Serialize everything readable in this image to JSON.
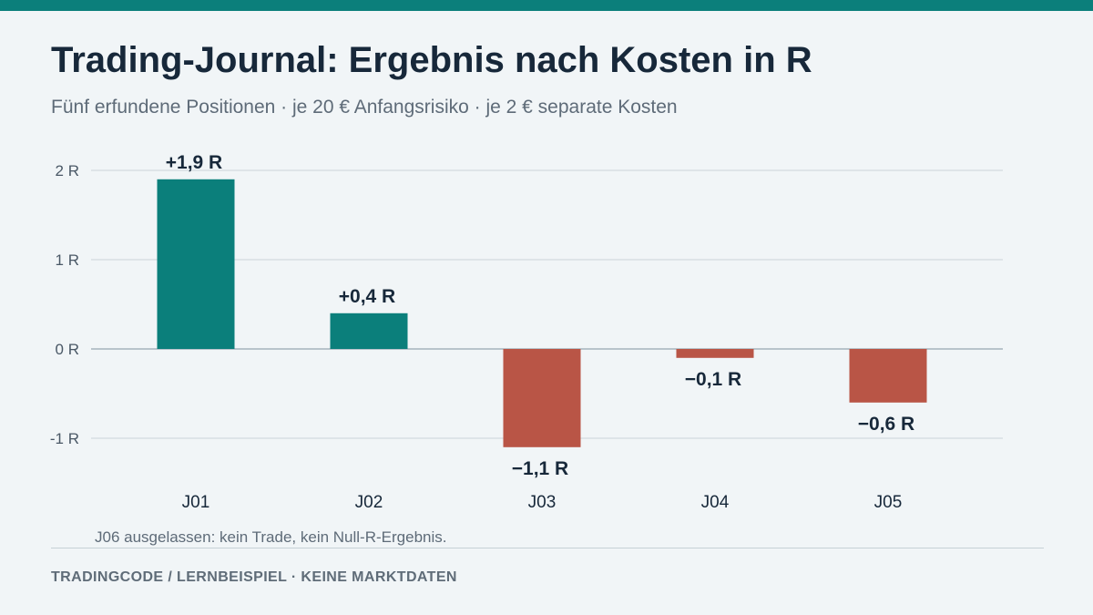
{
  "header": {
    "title": "Trading-Journal: Ergebnis nach Kosten in R",
    "subtitle": "Fünf erfundene Positionen · je 20 € Anfangsrisiko · je 2 € separate Kosten"
  },
  "footnote": "J06 ausgelassen: kein Trade, kein Null-R-Ergebnis.",
  "footer": {
    "text": "TRADINGCODE  /  LERNBEISPIEL · KEINE MARKTDATEN"
  },
  "colors": {
    "accent": "#0b7f7b",
    "positive": "#0b7f7b",
    "negative": "#b95546",
    "text": "#17283a",
    "grid": "#d3dbe0",
    "zero_line": "#b8c4cb",
    "background": "#f1f5f7"
  },
  "chart_data": {
    "type": "bar",
    "title": "Trading-Journal: Ergebnis nach Kosten in R",
    "subtitle": "Fünf erfundene Positionen · je 20 € Anfangsrisiko · je 2 € separate Kosten",
    "categories": [
      "J01",
      "J02",
      "J03",
      "J04",
      "J05"
    ],
    "values": [
      1.9,
      0.4,
      -1.1,
      -0.1,
      -0.6
    ],
    "data_labels": [
      "+1,9 R",
      "+0,4 R",
      "−1,1 R",
      "−0,1 R",
      "−0,6 R"
    ],
    "yticks": [
      2,
      1,
      0,
      -1
    ],
    "ytick_labels": [
      "2 R",
      "1 R",
      "0 R",
      "-1 R"
    ],
    "ylim": [
      -1,
      2
    ],
    "xlabel": "",
    "ylabel": "",
    "grid": true,
    "legend": "none"
  }
}
